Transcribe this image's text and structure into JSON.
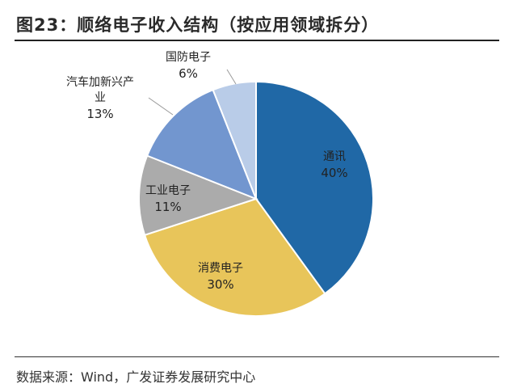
{
  "header": {
    "title": "图23：顺络电子收入结构（按应用领域拆分）"
  },
  "footer": {
    "source": "数据来源：Wind，广发证券发展研究中心"
  },
  "chart_data": {
    "type": "pie",
    "slices": [
      {
        "label": "通讯",
        "value": 40,
        "value_label": "40%",
        "color": "#2068a6"
      },
      {
        "label": "消费电子",
        "value": 30,
        "value_label": "30%",
        "color": "#e8c55a"
      },
      {
        "label": "工业电子",
        "value": 11,
        "value_label": "11%",
        "color": "#ababab"
      },
      {
        "label_lines": [
          "汽车加新兴产",
          "业"
        ],
        "value": 13,
        "value_label": "13%",
        "color": "#7296cf"
      },
      {
        "label": "国防电子",
        "value": 6,
        "value_label": "6%",
        "color": "#b9cce8"
      }
    ]
  }
}
